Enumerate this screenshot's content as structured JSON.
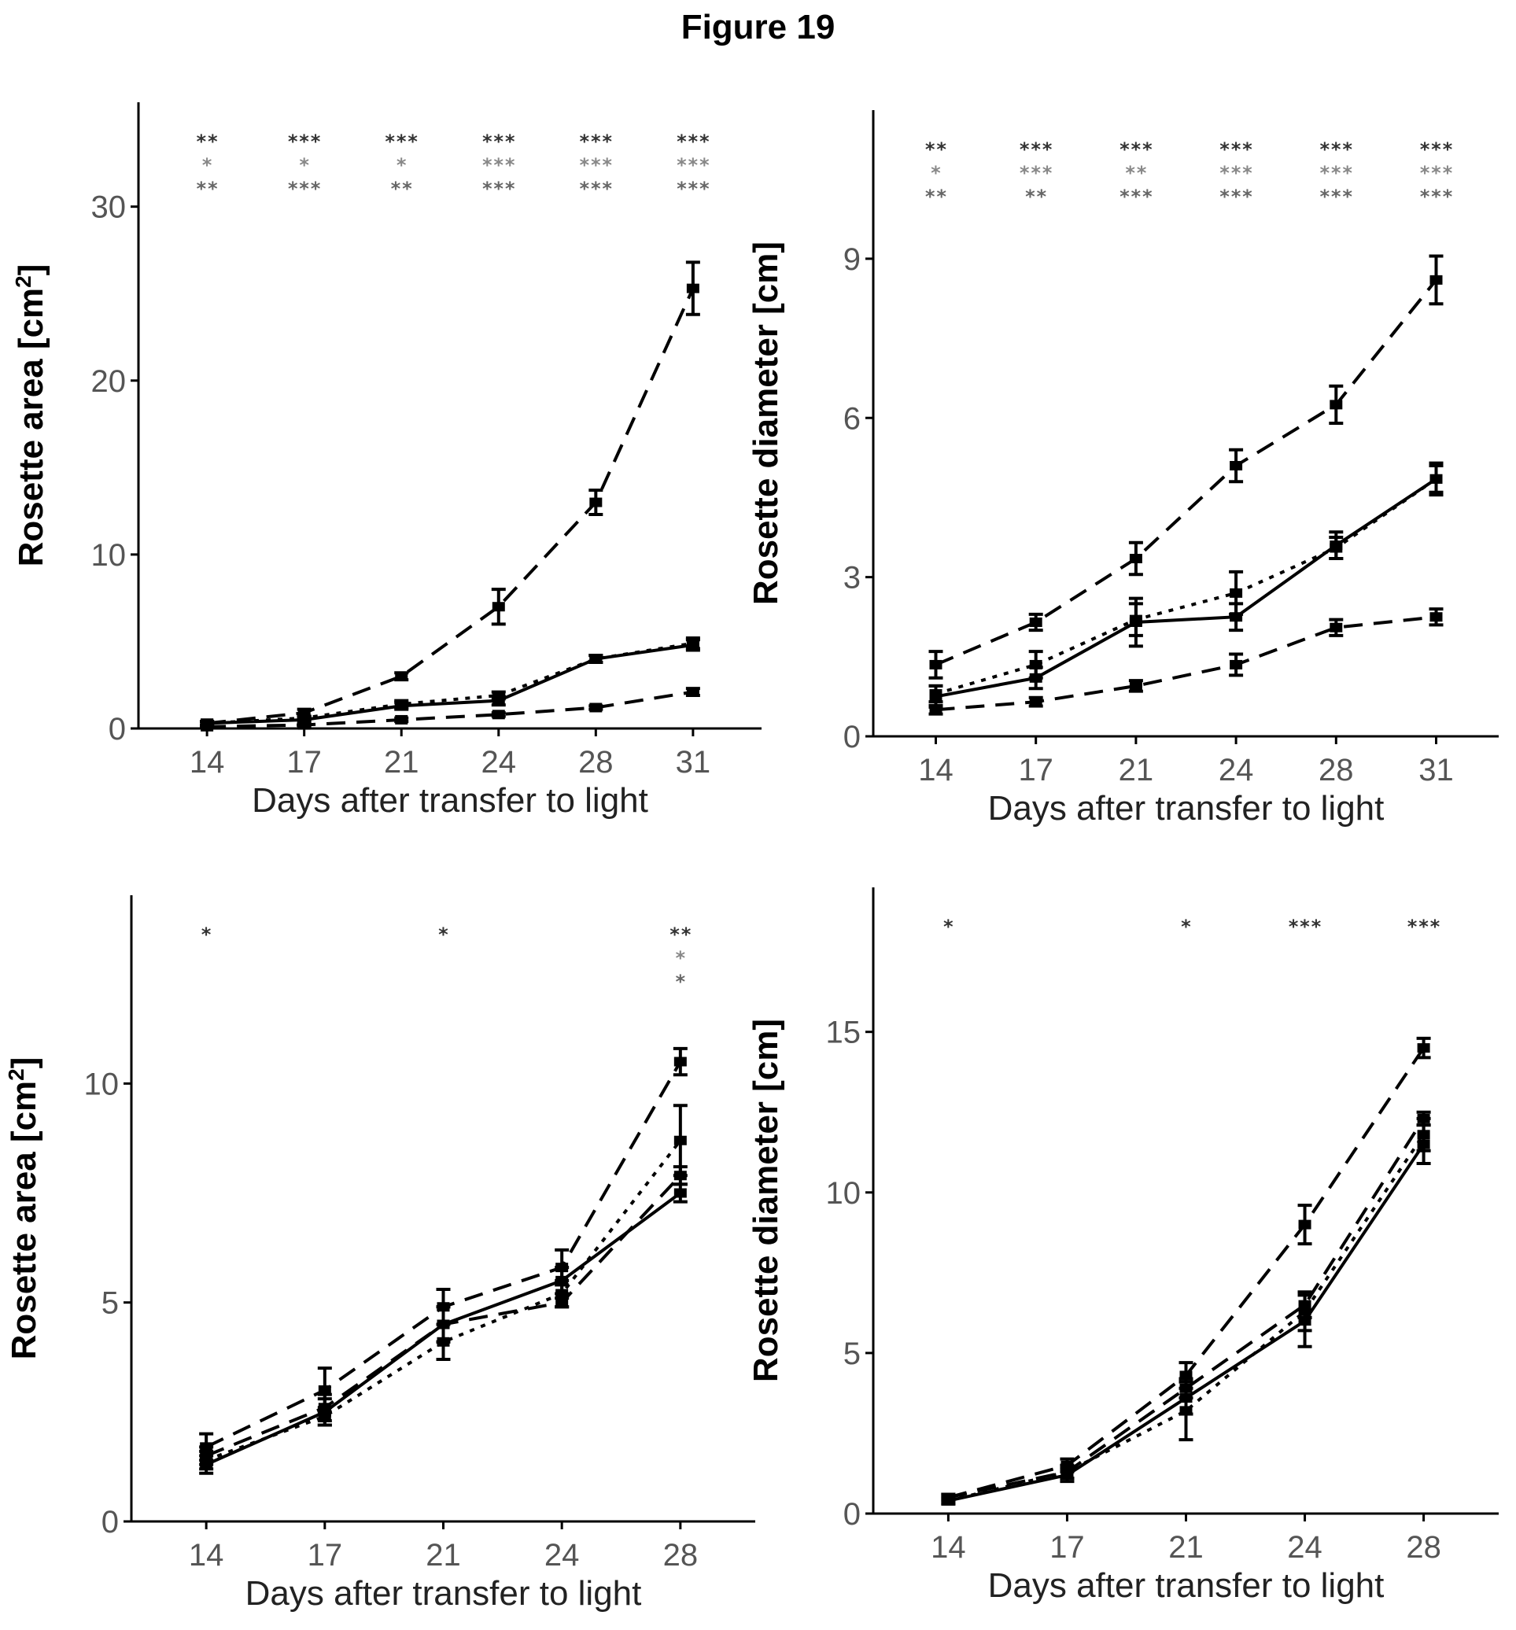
{
  "figure": {
    "title": "Figure 19"
  },
  "chart_data": [
    {
      "type": "line",
      "x": [
        14,
        17,
        21,
        24,
        28,
        31
      ],
      "xticks": [
        "14",
        "17",
        "21",
        "24",
        "28",
        "31"
      ],
      "xlabel": "Days after transfer to light",
      "ylabel": "Rosette area [cm",
      "ylabel_sup": "2",
      "ylabel_end": "]",
      "ylim": [
        0,
        36
      ],
      "yticks": [
        0,
        10,
        20,
        30
      ],
      "significance": [
        [
          "**",
          "*",
          "**"
        ],
        [
          "***",
          "*",
          "***"
        ],
        [
          "***",
          "*",
          "**"
        ],
        [
          "***",
          "***",
          "***"
        ],
        [
          "***",
          "***",
          "***"
        ],
        [
          "***",
          "***",
          "***"
        ]
      ],
      "series": [
        {
          "style": "dash",
          "values": [
            0.3,
            0.9,
            3.0,
            7.0,
            13.0,
            25.3
          ],
          "err": [
            0.1,
            0.2,
            0.2,
            1.0,
            0.7,
            1.5
          ]
        },
        {
          "style": "solid",
          "values": [
            0.3,
            0.5,
            1.3,
            1.6,
            4.0,
            4.8
          ],
          "err": [
            0.1,
            0.15,
            0.2,
            0.25,
            0.2,
            0.3
          ]
        },
        {
          "style": "dot",
          "values": [
            0.3,
            0.6,
            1.4,
            1.9,
            4.0,
            4.9
          ],
          "err": [
            0.1,
            0.1,
            0.2,
            0.2,
            0.2,
            0.3
          ]
        },
        {
          "style": "dash",
          "values": [
            0.1,
            0.2,
            0.5,
            0.8,
            1.2,
            2.1
          ],
          "err": [
            0.05,
            0.05,
            0.1,
            0.1,
            0.1,
            0.2
          ]
        }
      ]
    },
    {
      "type": "line",
      "x": [
        14,
        17,
        21,
        24,
        28,
        31
      ],
      "xticks": [
        "14",
        "17",
        "21",
        "24",
        "28",
        "31"
      ],
      "xlabel": "Days after transfer to light",
      "ylabel": "Rosette diameter [cm]",
      "ylim": [
        0,
        11.8
      ],
      "yticks": [
        0,
        3,
        6,
        9
      ],
      "significance": [
        [
          "**",
          "*",
          "**"
        ],
        [
          "***",
          "***",
          "**"
        ],
        [
          "***",
          "**",
          "***"
        ],
        [
          "***",
          "***",
          "***"
        ],
        [
          "***",
          "***",
          "***"
        ],
        [
          "***",
          "***",
          "***"
        ]
      ],
      "series": [
        {
          "style": "dash",
          "values": [
            1.35,
            2.15,
            3.35,
            5.1,
            6.25,
            8.6
          ],
          "err": [
            0.25,
            0.15,
            0.3,
            0.3,
            0.35,
            0.45
          ]
        },
        {
          "style": "solid",
          "values": [
            0.75,
            1.1,
            2.15,
            2.25,
            3.6,
            4.85
          ],
          "err": [
            0.2,
            0.2,
            0.45,
            0.25,
            0.25,
            0.3
          ]
        },
        {
          "style": "dot",
          "values": [
            0.8,
            1.35,
            2.2,
            2.7,
            3.55,
            4.85
          ],
          "err": [
            0.15,
            0.25,
            0.3,
            0.4,
            0.2,
            0.25
          ]
        },
        {
          "style": "dash",
          "values": [
            0.5,
            0.65,
            0.95,
            1.35,
            2.05,
            2.25
          ],
          "err": [
            0.08,
            0.08,
            0.1,
            0.2,
            0.15,
            0.15
          ]
        }
      ]
    },
    {
      "type": "line",
      "x": [
        14,
        17,
        21,
        24,
        28
      ],
      "xticks": [
        "14",
        "17",
        "21",
        "24",
        "28"
      ],
      "xlabel": "Days after transfer to light",
      "ylabel": "Rosette area [cm",
      "ylabel_sup": "2",
      "ylabel_end": "]",
      "ylim": [
        0,
        14.3
      ],
      "yticks": [
        0,
        5,
        10
      ],
      "significance": [
        [
          "*",
          "",
          ""
        ],
        [
          "",
          "",
          ""
        ],
        [
          "*",
          "",
          ""
        ],
        [
          "",
          "",
          ""
        ],
        [
          "**",
          "*",
          "*"
        ]
      ],
      "series": [
        {
          "style": "dash",
          "values": [
            1.7,
            3.0,
            4.9,
            5.8,
            10.5
          ],
          "err": [
            0.3,
            0.5,
            0.4,
            0.4,
            0.3
          ]
        },
        {
          "style": "solid",
          "values": [
            1.3,
            2.5,
            4.5,
            5.5,
            7.5
          ],
          "err": [
            0.2,
            0.3,
            0.4,
            0.3,
            0.2
          ]
        },
        {
          "style": "dot",
          "values": [
            1.4,
            2.4,
            4.1,
            5.2,
            8.7
          ],
          "err": [
            0.2,
            0.2,
            0.4,
            0.3,
            0.8
          ]
        },
        {
          "style": "dash",
          "values": [
            1.5,
            2.6,
            4.5,
            5.0,
            7.9
          ],
          "err": [
            0.2,
            0.3,
            0.4,
            0.1,
            0.2
          ]
        }
      ]
    },
    {
      "type": "line",
      "x": [
        14,
        17,
        21,
        24,
        28
      ],
      "xticks": [
        "14",
        "17",
        "21",
        "24",
        "28"
      ],
      "xlabel": "Days after transfer to light",
      "ylabel": "Rosette diameter [cm]",
      "ylim": [
        0,
        19.5
      ],
      "yticks": [
        0,
        5,
        10,
        15
      ],
      "significance": [
        [
          "*",
          "",
          ""
        ],
        [
          "",
          "",
          ""
        ],
        [
          "*",
          "",
          ""
        ],
        [
          "***",
          "",
          ""
        ],
        [
          "***",
          "",
          ""
        ]
      ],
      "series": [
        {
          "style": "dash",
          "values": [
            0.5,
            1.5,
            4.3,
            9.0,
            14.5
          ],
          "err": [
            0.1,
            0.2,
            0.4,
            0.6,
            0.3
          ]
        },
        {
          "style": "solid",
          "values": [
            0.4,
            1.2,
            3.6,
            6.0,
            11.5
          ],
          "err": [
            0.1,
            0.2,
            0.5,
            0.8,
            0.6
          ]
        },
        {
          "style": "dot",
          "values": [
            0.4,
            1.3,
            3.2,
            6.3,
            11.8
          ],
          "err": [
            0.1,
            0.2,
            0.9,
            0.6,
            0.5
          ]
        },
        {
          "style": "dash",
          "values": [
            0.5,
            1.3,
            3.9,
            6.5,
            12.3
          ],
          "err": [
            0.1,
            0.2,
            0.3,
            0.4,
            0.2
          ]
        }
      ]
    }
  ]
}
